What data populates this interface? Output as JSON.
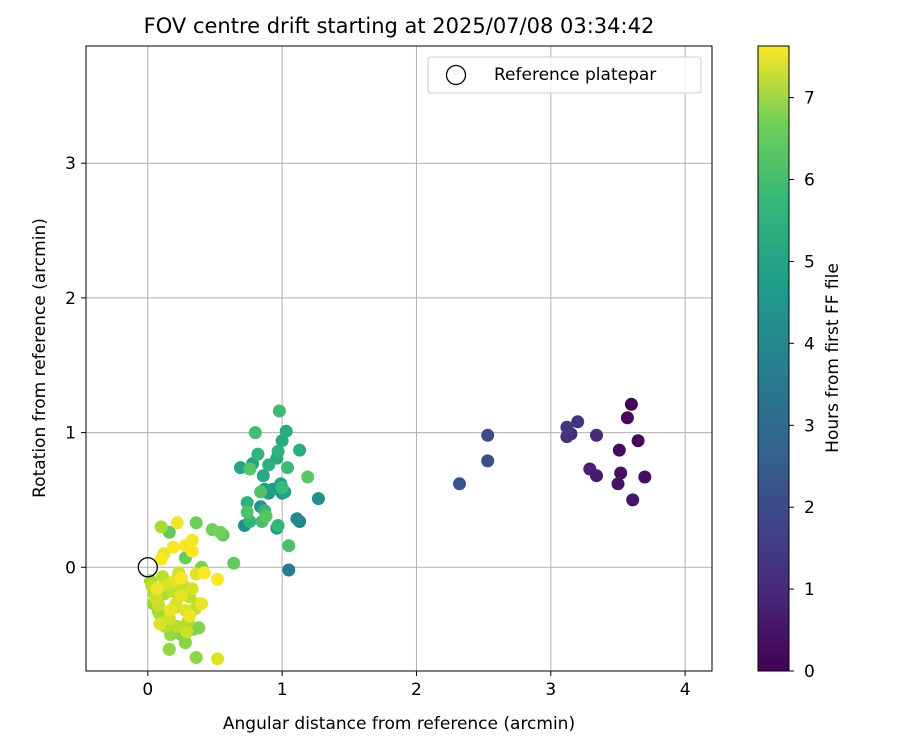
{
  "chart_data": {
    "type": "scatter",
    "title": "FOV centre drift starting at 2025/07/08 03:34:42",
    "xlabel": "Angular distance from reference (arcmin)",
    "ylabel": "Rotation from reference (arcmin)",
    "xlim": [
      -0.46,
      4.2
    ],
    "ylim": [
      -0.77,
      3.87
    ],
    "xticks": [
      "0",
      "1",
      "2",
      "3",
      "4"
    ],
    "yticks": [
      "0",
      "1",
      "2",
      "3"
    ],
    "grid": true,
    "legend": {
      "position": "top-right",
      "label": "Reference platepar"
    },
    "reference_point": [
      0,
      0
    ],
    "colorbar": {
      "label": "Hours from first FF file",
      "min": 0,
      "max": 7.63,
      "ticks": [
        "0",
        "1",
        "2",
        "3",
        "4",
        "5",
        "6",
        "7"
      ],
      "colormap": "viridis"
    },
    "points": [
      [
        3.6,
        1.21,
        0.1
      ],
      [
        3.57,
        1.11,
        0.15
      ],
      [
        3.65,
        0.94,
        0.2
      ],
      [
        3.51,
        0.87,
        0.25
      ],
      [
        3.7,
        0.67,
        0.3
      ],
      [
        3.52,
        0.7,
        0.35
      ],
      [
        3.5,
        0.62,
        0.4
      ],
      [
        3.61,
        0.5,
        0.45
      ],
      [
        3.34,
        0.68,
        0.55
      ],
      [
        3.29,
        0.73,
        0.7
      ],
      [
        3.34,
        0.98,
        0.85
      ],
      [
        3.15,
        0.99,
        0.95
      ],
      [
        3.12,
        0.97,
        1.05
      ],
      [
        3.2,
        1.08,
        1.15
      ],
      [
        3.12,
        1.04,
        1.25
      ],
      [
        2.53,
        0.98,
        1.75
      ],
      [
        2.53,
        0.79,
        1.85
      ],
      [
        2.32,
        0.62,
        2.0
      ],
      [
        1.05,
        -0.02,
        3.3
      ],
      [
        1.13,
        0.34,
        3.5
      ],
      [
        1.11,
        0.36,
        3.6
      ],
      [
        1.27,
        0.51,
        3.75
      ],
      [
        0.72,
        0.31,
        3.85
      ],
      [
        0.84,
        0.45,
        3.95
      ],
      [
        0.9,
        0.55,
        4.05
      ],
      [
        0.96,
        0.29,
        4.1
      ],
      [
        1.0,
        0.55,
        4.2
      ],
      [
        0.93,
        0.58,
        4.25
      ],
      [
        0.87,
        0.58,
        4.3
      ],
      [
        1.02,
        0.56,
        4.35
      ],
      [
        0.99,
        0.62,
        4.4
      ],
      [
        0.69,
        0.74,
        4.45
      ],
      [
        0.78,
        0.77,
        4.5
      ],
      [
        0.86,
        0.68,
        4.55
      ],
      [
        0.96,
        0.81,
        4.6
      ],
      [
        1.0,
        0.94,
        4.65
      ],
      [
        1.03,
        1.01,
        4.7
      ],
      [
        1.13,
        0.87,
        4.75
      ],
      [
        0.9,
        0.76,
        4.8
      ],
      [
        0.97,
        0.86,
        4.85
      ],
      [
        0.74,
        0.48,
        4.9
      ],
      [
        0.82,
        0.84,
        4.95
      ],
      [
        0.76,
        0.34,
        5.0
      ],
      [
        0.87,
        0.42,
        5.05
      ],
      [
        0.97,
        0.31,
        5.1
      ],
      [
        1.0,
        0.59,
        5.15
      ],
      [
        1.04,
        0.74,
        5.2
      ],
      [
        0.98,
        1.16,
        5.25
      ],
      [
        0.8,
        1.0,
        5.3
      ],
      [
        0.85,
        0.34,
        5.35
      ],
      [
        1.05,
        0.16,
        5.4
      ],
      [
        0.74,
        0.41,
        5.45
      ],
      [
        0.84,
        0.56,
        5.5
      ],
      [
        0.76,
        0.73,
        5.55
      ],
      [
        0.88,
        0.38,
        5.6
      ],
      [
        1.19,
        0.67,
        5.65
      ],
      [
        0.56,
        0.24,
        5.7
      ],
      [
        0.64,
        0.03,
        5.75
      ],
      [
        0.16,
        0.26,
        5.8
      ],
      [
        0.28,
        0.07,
        5.85
      ],
      [
        0.36,
        0.33,
        5.9
      ],
      [
        0.54,
        0.26,
        5.95
      ],
      [
        0.48,
        0.28,
        6.0
      ],
      [
        0.34,
        -0.46,
        6.05
      ],
      [
        0.4,
        0.0,
        6.1
      ],
      [
        0.38,
        -0.45,
        6.15
      ],
      [
        0.25,
        -0.5,
        6.2
      ],
      [
        0.28,
        -0.56,
        6.25
      ],
      [
        0.36,
        -0.67,
        6.3
      ],
      [
        0.16,
        -0.61,
        6.35
      ],
      [
        0.17,
        -0.5,
        6.4
      ],
      [
        0.08,
        -0.33,
        6.45
      ],
      [
        0.04,
        -0.27,
        6.5
      ],
      [
        0.02,
        -0.1,
        6.55
      ],
      [
        0.1,
        0.3,
        6.6
      ],
      [
        0.09,
        -0.35,
        6.62
      ],
      [
        0.05,
        -0.2,
        6.65
      ],
      [
        0.12,
        -0.2,
        6.7
      ],
      [
        0.2,
        -0.3,
        6.72
      ],
      [
        0.3,
        -0.4,
        6.75
      ],
      [
        0.38,
        -0.27,
        6.77
      ],
      [
        0.13,
        -0.44,
        6.8
      ],
      [
        0.22,
        -0.44,
        6.82
      ],
      [
        0.31,
        -0.22,
        6.85
      ],
      [
        0.11,
        -0.07,
        6.88
      ],
      [
        0.03,
        -0.14,
        6.9
      ],
      [
        0.26,
        -0.13,
        6.92
      ],
      [
        0.19,
        -0.18,
        6.95
      ],
      [
        0.08,
        -0.28,
        6.98
      ],
      [
        0.35,
        -0.31,
        7.0
      ],
      [
        0.29,
        -0.48,
        7.02
      ],
      [
        0.16,
        -0.38,
        7.05
      ],
      [
        0.06,
        -0.23,
        7.08
      ],
      [
        0.23,
        -0.04,
        7.1
      ],
      [
        0.14,
        -0.13,
        7.12
      ],
      [
        0.33,
        -0.16,
        7.15
      ],
      [
        0.21,
        -0.27,
        7.18
      ],
      [
        0.09,
        -0.42,
        7.2
      ],
      [
        0.52,
        -0.68,
        7.22
      ],
      [
        0.28,
        -0.32,
        7.25
      ],
      [
        0.36,
        -0.05,
        7.27
      ],
      [
        0.2,
        -0.1,
        7.3
      ],
      [
        0.12,
        0.1,
        7.32
      ],
      [
        0.25,
        -0.21,
        7.35
      ],
      [
        0.4,
        -0.27,
        7.38
      ],
      [
        0.17,
        -0.32,
        7.4
      ],
      [
        0.31,
        -0.36,
        7.42
      ],
      [
        0.07,
        -0.16,
        7.45
      ],
      [
        0.22,
        0.33,
        7.48
      ],
      [
        0.33,
        0.2,
        7.5
      ],
      [
        0.28,
        0.16,
        7.52
      ],
      [
        0.19,
        0.15,
        7.55
      ],
      [
        0.25,
        -0.08,
        7.56
      ],
      [
        0.52,
        -0.09,
        7.58
      ],
      [
        0.42,
        -0.04,
        7.6
      ],
      [
        0.1,
        0.06,
        7.62
      ],
      [
        0.33,
        0.12,
        7.63
      ]
    ]
  }
}
